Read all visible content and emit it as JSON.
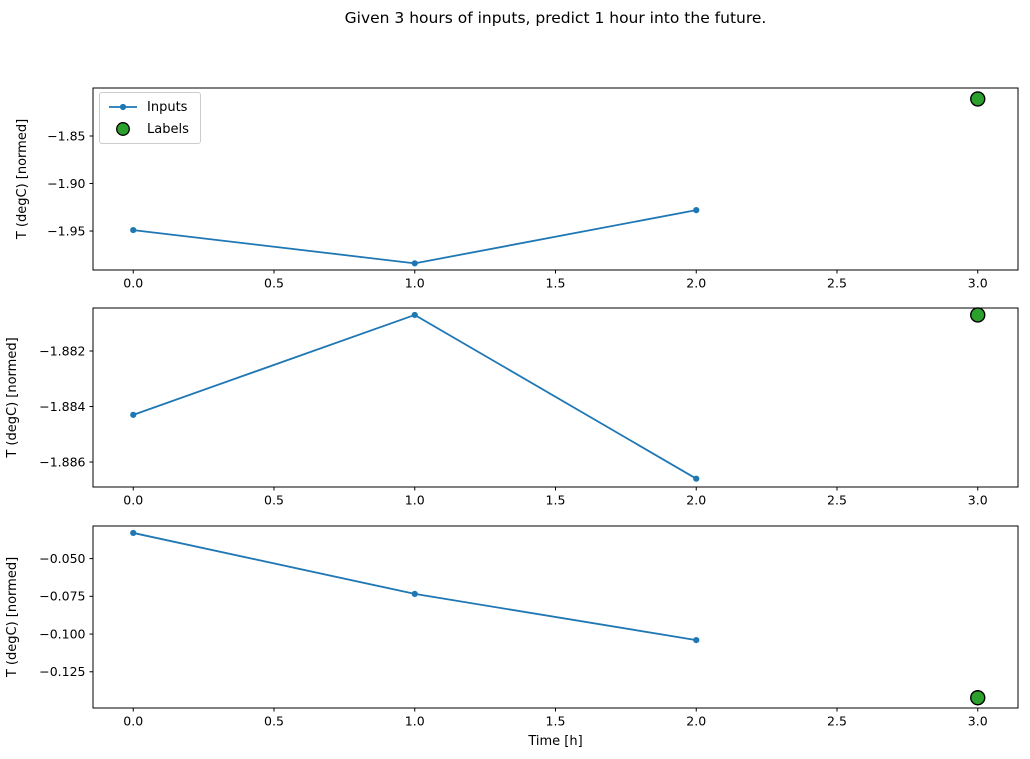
{
  "title": "Given 3 hours of inputs, predict 1 hour into the future.",
  "colors": {
    "inputs_line": "#1f77b4",
    "labels_fill": "#2ca02c",
    "labels_edge": "#000000",
    "axes": "#000000"
  },
  "legend": {
    "inputs_label": "Inputs",
    "labels_label": "Labels"
  },
  "chart_data": {
    "type": "line",
    "title": "Given 3 hours of inputs, predict 1 hour into the future.",
    "xlabel": "Time [h]",
    "grid": false,
    "legend_position": "upper left (subplot 1 only)",
    "xlim": [
      -0.143,
      3.143
    ],
    "xticks": [
      0.0,
      0.5,
      1.0,
      1.5,
      2.0,
      2.5,
      3.0
    ],
    "xtick_labels": [
      "0.0",
      "0.5",
      "1.0",
      "1.5",
      "2.0",
      "2.5",
      "3.0"
    ],
    "subplots": [
      {
        "ylabel": "T (degC) [normed]",
        "ylim": [
          -1.991,
          -1.7995
        ],
        "yticks": [
          -1.85,
          -1.9,
          -1.95
        ],
        "ytick_labels": [
          "−1.85",
          "−1.90",
          "−1.95"
        ],
        "series": [
          {
            "name": "Inputs",
            "type": "line",
            "x": [
              0,
              1,
              2
            ],
            "y": [
              -1.949,
              -1.984,
              -1.928
            ]
          },
          {
            "name": "Labels",
            "type": "scatter",
            "x": [
              3
            ],
            "y": [
              -1.811
            ]
          }
        ]
      },
      {
        "ylabel": "T (degC) [normed]",
        "ylim": [
          -1.8869,
          -1.88045
        ],
        "yticks": [
          -1.882,
          -1.884,
          -1.886
        ],
        "ytick_labels": [
          "−1.882",
          "−1.884",
          "−1.886"
        ],
        "series": [
          {
            "name": "Inputs",
            "type": "line",
            "x": [
              0,
              1,
              2
            ],
            "y": [
              -1.8843,
              -1.8807,
              -1.8866
            ]
          },
          {
            "name": "Labels",
            "type": "scatter",
            "x": [
              3
            ],
            "y": [
              -1.8807
            ]
          }
        ]
      },
      {
        "ylabel": "T (degC) [normed]",
        "ylim": [
          -0.149,
          -0.0284
        ],
        "yticks": [
          -0.05,
          -0.075,
          -0.1,
          -0.125
        ],
        "ytick_labels": [
          "−0.050",
          "−0.075",
          "−0.100",
          "−0.125"
        ],
        "series": [
          {
            "name": "Inputs",
            "type": "line",
            "x": [
              0,
              1,
              2
            ],
            "y": [
              -0.033,
              -0.0734,
              -0.104
            ]
          },
          {
            "name": "Labels",
            "type": "scatter",
            "x": [
              3
            ],
            "y": [
              -0.1422
            ]
          }
        ]
      }
    ]
  }
}
